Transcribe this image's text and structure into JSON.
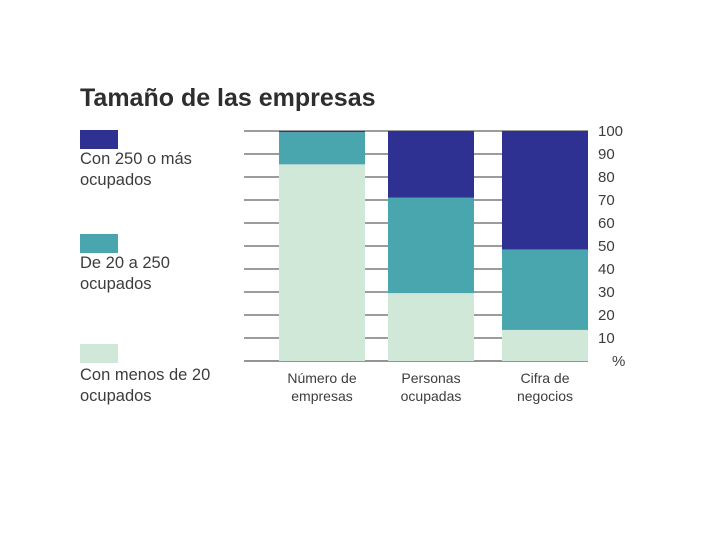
{
  "chart_data": {
    "type": "bar",
    "stacked": true,
    "title": "Tamaño de las empresas",
    "categories": [
      "Número de empresas",
      "Personas ocupadas",
      "Cifra de negocios"
    ],
    "category_lines": [
      [
        "Número de",
        "empresas"
      ],
      [
        "Personas",
        "ocupadas"
      ],
      [
        "Cifra de",
        "negocios"
      ]
    ],
    "series": [
      {
        "name": "Con menos de 20 ocupados",
        "name_lines": [
          "Con menos de 20",
          "ocupados"
        ],
        "color": "#cfe8d8",
        "values": [
          85.5,
          29.5,
          13.5
        ]
      },
      {
        "name": "De 20 a 250 ocupados",
        "name_lines": [
          "De 20 a 250",
          "ocupados"
        ],
        "color": "#4aa6ae",
        "values": [
          14,
          41.5,
          35
        ]
      },
      {
        "name": "Con 250 o más ocupados",
        "name_lines": [
          "Con 250 o más",
          "ocupados"
        ],
        "color": "#2e3192",
        "values": [
          0.5,
          29,
          51.5
        ]
      }
    ],
    "ylim": [
      0,
      100
    ],
    "yticks": [
      "100",
      "90",
      "80",
      "70",
      "60",
      "50",
      "40",
      "30",
      "20",
      "10"
    ],
    "yunit": "%",
    "grid": true,
    "legend_position": "left"
  }
}
